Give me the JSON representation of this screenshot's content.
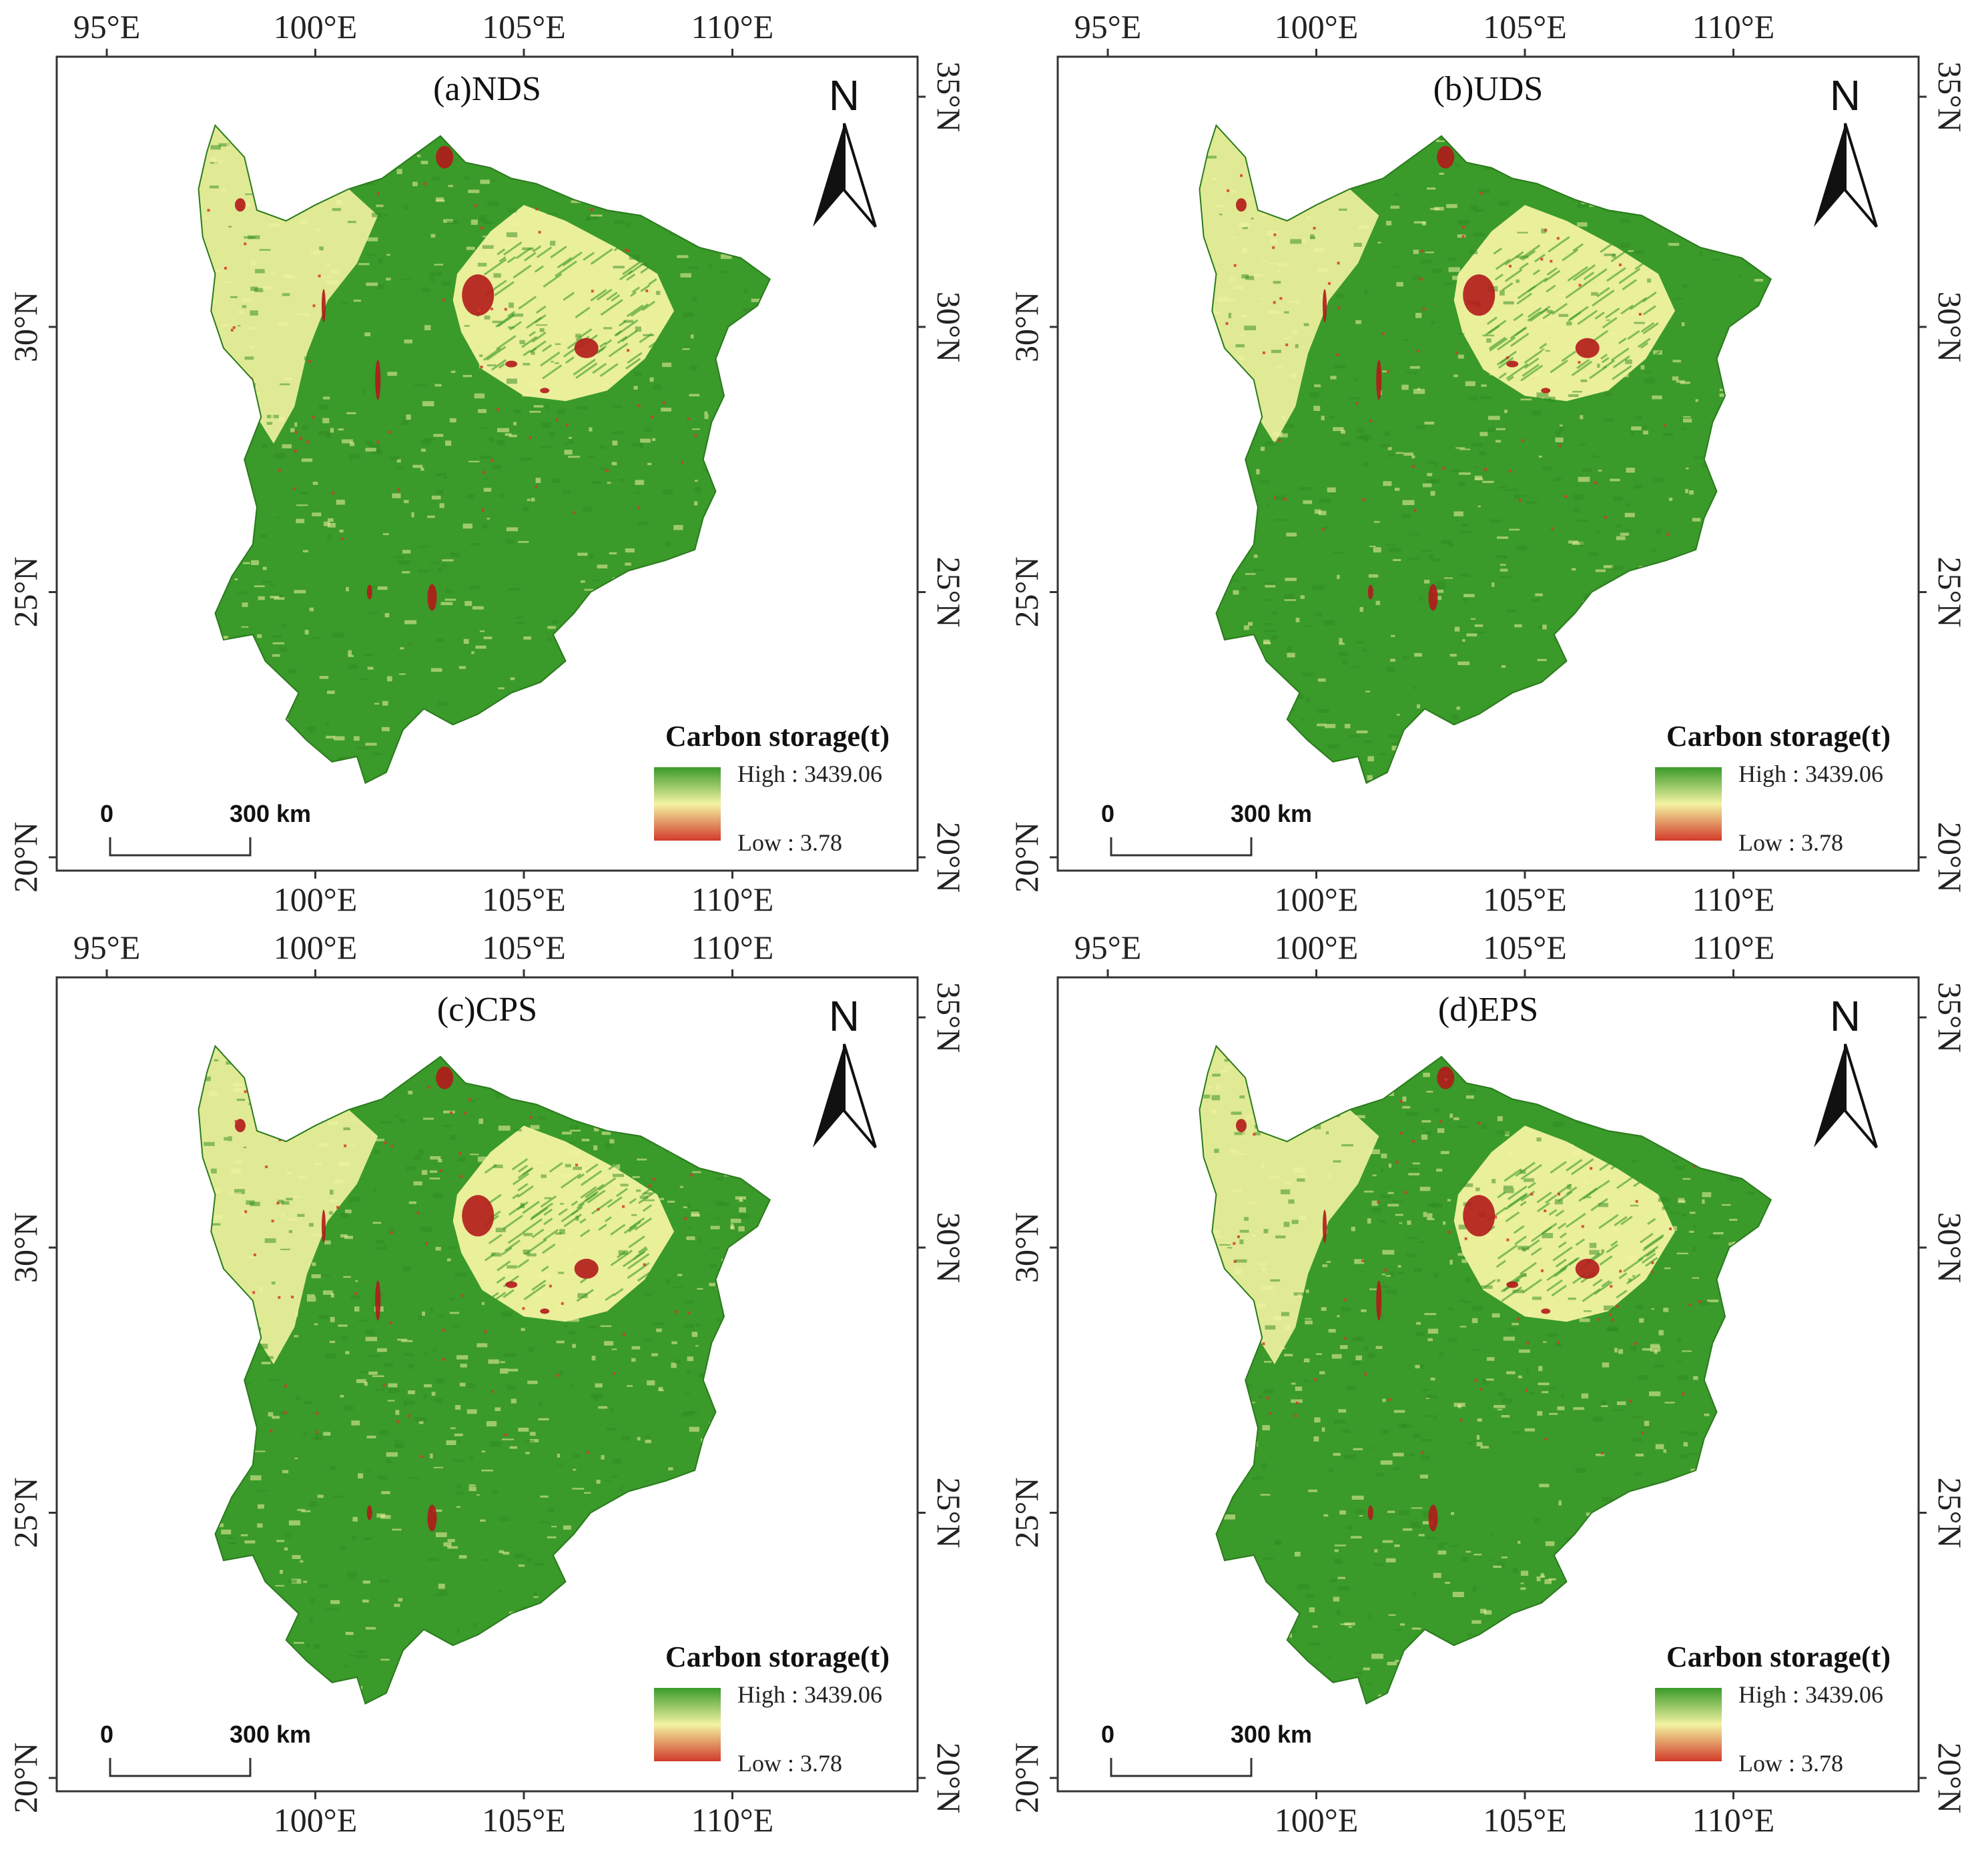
{
  "colors": {
    "high": "#3a9a2a",
    "mid": "#f3f3a0",
    "low": "#d23b2a",
    "dark_urban": "#b21a1a"
  },
  "axes": {
    "top_lon_labels": [
      "95°E",
      "100°E",
      "105°E",
      "110°E"
    ],
    "bottom_lon_labels": [
      "100°E",
      "105°E",
      "110°E"
    ],
    "lat_labels": [
      "20°N",
      "25°N",
      "30°N",
      "35°N"
    ]
  },
  "legend": {
    "title": "Carbon storage(t)",
    "high_label": "High : 3439.06",
    "low_label": "Low : 3.78"
  },
  "scale_bar": {
    "zero": "0",
    "distance": "300 km"
  },
  "north_arrow": {
    "label": "N",
    "icon": "north-arrow-icon"
  },
  "panels": [
    {
      "id": "a",
      "title": "(a)NDS"
    },
    {
      "id": "b",
      "title": "(b)UDS"
    },
    {
      "id": "c",
      "title": "(c)CPS"
    },
    {
      "id": "d",
      "title": "(d)EPS"
    }
  ]
}
